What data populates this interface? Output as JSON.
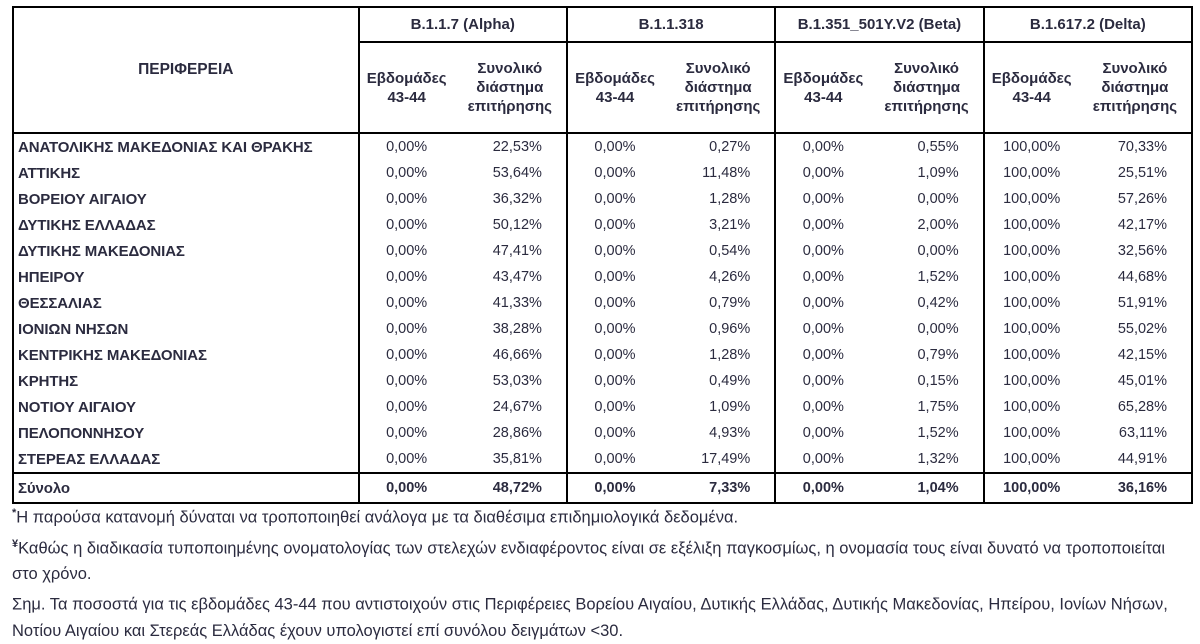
{
  "table": {
    "region_header": "ΠΕΡΙΦΕΡΕΙΑ",
    "variants": [
      "B.1.1.7 (Alpha)",
      "B.1.1.318",
      "B.1.351_501Y.V2 (Beta)",
      "B.1.617.2 (Delta)"
    ],
    "week_header": "Εβδομάδες 43-44",
    "total_header": "Συνολικό διάστημα επιτήρησης",
    "rows": [
      {
        "region": "ΑΝΑΤΟΛΙΚΗΣ ΜΑΚΕΔΟΝΙΑΣ ΚΑΙ ΘΡΑΚΗΣ",
        "values": [
          "0,00%",
          "22,53%",
          "0,00%",
          "0,27%",
          "0,00%",
          "0,55%",
          "100,00%",
          "70,33%"
        ]
      },
      {
        "region": "ΑΤΤΙΚΗΣ",
        "values": [
          "0,00%",
          "53,64%",
          "0,00%",
          "11,48%",
          "0,00%",
          "1,09%",
          "100,00%",
          "25,51%"
        ]
      },
      {
        "region": "ΒΟΡΕΙΟΥ ΑΙΓΑΙΟΥ",
        "values": [
          "0,00%",
          "36,32%",
          "0,00%",
          "1,28%",
          "0,00%",
          "0,00%",
          "100,00%",
          "57,26%"
        ]
      },
      {
        "region": "ΔΥΤΙΚΗΣ ΕΛΛΑΔΑΣ",
        "values": [
          "0,00%",
          "50,12%",
          "0,00%",
          "3,21%",
          "0,00%",
          "2,00%",
          "100,00%",
          "42,17%"
        ]
      },
      {
        "region": "ΔΥΤΙΚΗΣ ΜΑΚΕΔΟΝΙΑΣ",
        "values": [
          "0,00%",
          "47,41%",
          "0,00%",
          "0,54%",
          "0,00%",
          "0,00%",
          "100,00%",
          "32,56%"
        ]
      },
      {
        "region": "ΗΠΕΙΡΟΥ",
        "values": [
          "0,00%",
          "43,47%",
          "0,00%",
          "4,26%",
          "0,00%",
          "1,52%",
          "100,00%",
          "44,68%"
        ]
      },
      {
        "region": "ΘΕΣΣΑΛΙΑΣ",
        "values": [
          "0,00%",
          "41,33%",
          "0,00%",
          "0,79%",
          "0,00%",
          "0,42%",
          "100,00%",
          "51,91%"
        ]
      },
      {
        "region": "ΙΟΝΙΩΝ ΝΗΣΩΝ",
        "values": [
          "0,00%",
          "38,28%",
          "0,00%",
          "0,96%",
          "0,00%",
          "0,00%",
          "100,00%",
          "55,02%"
        ]
      },
      {
        "region": "ΚΕΝΤΡΙΚΗΣ ΜΑΚΕΔΟΝΙΑΣ",
        "values": [
          "0,00%",
          "46,66%",
          "0,00%",
          "1,28%",
          "0,00%",
          "0,79%",
          "100,00%",
          "42,15%"
        ]
      },
      {
        "region": "ΚΡΗΤΗΣ",
        "values": [
          "0,00%",
          "53,03%",
          "0,00%",
          "0,49%",
          "0,00%",
          "0,15%",
          "100,00%",
          "45,01%"
        ]
      },
      {
        "region": "ΝΟΤΙΟΥ ΑΙΓΑΙΟΥ",
        "values": [
          "0,00%",
          "24,67%",
          "0,00%",
          "1,09%",
          "0,00%",
          "1,75%",
          "100,00%",
          "65,28%"
        ]
      },
      {
        "region": "ΠΕΛΟΠΟΝΝΗΣΟΥ",
        "values": [
          "0,00%",
          "28,86%",
          "0,00%",
          "4,93%",
          "0,00%",
          "1,52%",
          "100,00%",
          "63,11%"
        ]
      },
      {
        "region": "ΣΤΕΡΕΑΣ ΕΛΛΑΔΑΣ",
        "values": [
          "0,00%",
          "35,81%",
          "0,00%",
          "17,49%",
          "0,00%",
          "1,32%",
          "100,00%",
          "44,91%"
        ]
      }
    ],
    "total_row": {
      "region": "Σύνολο",
      "values": [
        "0,00%",
        "48,72%",
        "0,00%",
        "7,33%",
        "0,00%",
        "1,04%",
        "100,00%",
        "36,16%"
      ]
    }
  },
  "footnotes": [
    {
      "marker": "*",
      "text": "Η παρούσα κατανομή δύναται να τροποποιηθεί ανάλογα με τα διαθέσιμα επιδημιολογικά δεδομένα."
    },
    {
      "marker": "¥",
      "text": "Καθώς η διαδικασία τυποποιημένης ονοματολογίας των στελεχών ενδιαφέροντος είναι σε εξέλιξη παγκοσμίως, η ονομασία τους είναι δυνατό να τροποποιείται στο χρόνο."
    },
    {
      "marker": "",
      "text": "Σημ. Τα ποσοστά για τις εβδομάδες 43-44 που αντιστοιχούν στις Περιφέρειες Βορείου Αιγαίου, Δυτικής Ελλάδας, Δυτικής Μακεδονίας, Ηπείρου, Ιονίων Νήσων, Νοτίου Αιγαίου και Στερεάς Ελλάδας έχουν υπολογιστεί επί συνόλου δειγμάτων <30."
    }
  ],
  "colors": {
    "text": "#2b2b3f",
    "border": "#000000",
    "background": "#ffffff"
  }
}
